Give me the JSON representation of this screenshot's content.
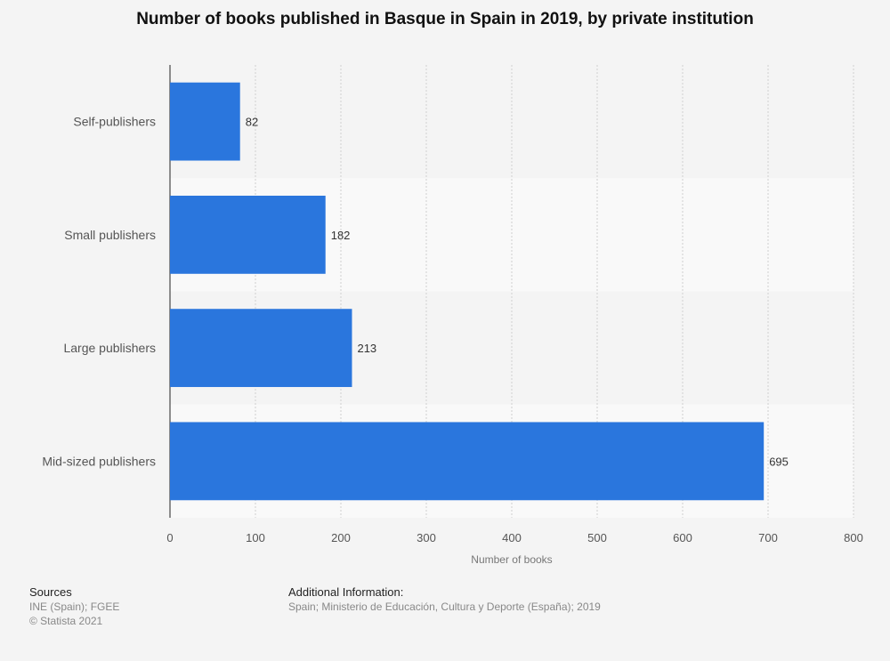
{
  "chart_data": {
    "type": "bar",
    "orientation": "horizontal",
    "title": "Number of books published in Basque in Spain in 2019, by private institution",
    "categories": [
      "Self-publishers",
      "Small publishers",
      "Large publishers",
      "Mid-sized publishers"
    ],
    "values": [
      82,
      182,
      213,
      695
    ],
    "xlabel": "Number of books",
    "ylabel": "",
    "xlim": [
      0,
      800
    ],
    "xticks": [
      "0",
      "100",
      "200",
      "300",
      "400",
      "500",
      "600",
      "700",
      "800"
    ],
    "grid": true,
    "bar_color": "#2a76dd"
  },
  "footer": {
    "sources_heading": "Sources",
    "sources_text": "INE (Spain); FGEE",
    "copyright": "© Statista 2021",
    "additional_heading": "Additional Information:",
    "additional_text": "Spain; Ministerio de Educación, Cultura y Deporte (España); 2019"
  }
}
